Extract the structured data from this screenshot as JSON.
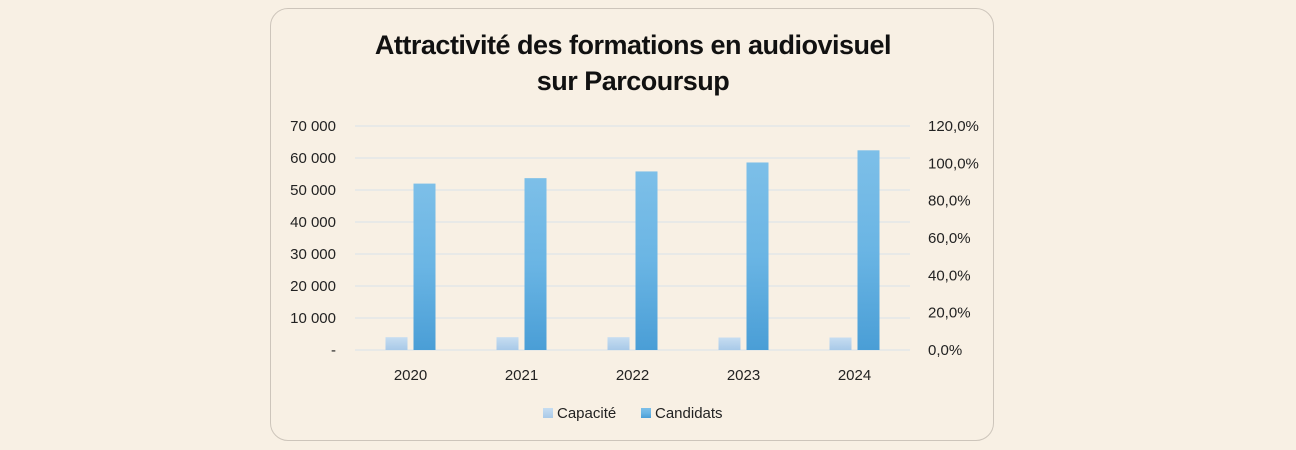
{
  "chart_data": {
    "type": "bar",
    "title_lines": [
      "Attractivité des formations en audiovisuel",
      "sur Parcoursup"
    ],
    "categories": [
      "2020",
      "2021",
      "2022",
      "2023",
      "2024"
    ],
    "series": [
      {
        "name": "Capacité",
        "values": [
          4000,
          4000,
          4000,
          3900,
          3900
        ]
      },
      {
        "name": "Candidats",
        "values": [
          52000,
          53700,
          55800,
          58600,
          62400
        ]
      }
    ],
    "ylim": [
      0,
      70000
    ],
    "y_ticks": [
      "-",
      "10 000",
      "20 000",
      "30 000",
      "40 000",
      "50 000",
      "60 000",
      "70 000"
    ],
    "y2lim": [
      0,
      1.2
    ],
    "y2_ticks": [
      "0,0%",
      "20,0%",
      "40,0%",
      "60,0%",
      "80,0%",
      "100,0%",
      "120,0%"
    ],
    "grid": true,
    "legend_position": "bottom",
    "colors": {
      "Capacité": "#b7d3ec",
      "Candidats": "#5aaee0",
      "gridline": "#d9e2ea",
      "card_border": "#cdc5bb",
      "background": "#f8f0e4"
    }
  }
}
